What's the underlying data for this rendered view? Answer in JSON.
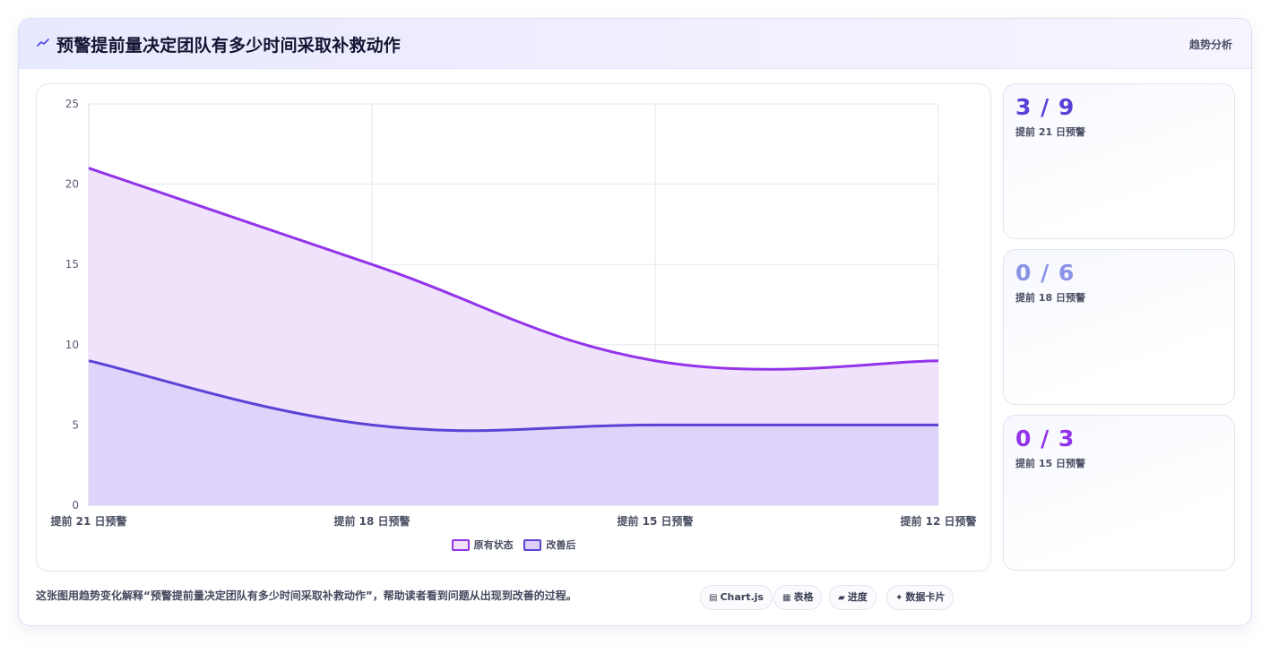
{
  "header": {
    "title": "预警提前量决定团队有多少时间采取补救动作",
    "tag": "趋势分析"
  },
  "chart_data": {
    "type": "area",
    "categories": [
      "提前 21 日预警",
      "提前 18 日预警",
      "提前 15 日预警",
      "提前 12 日预警"
    ],
    "series": [
      {
        "name": "原有状态",
        "values": [
          21,
          15,
          9,
          9
        ],
        "color": "#9333ea",
        "fill": "#efe2fa"
      },
      {
        "name": "改善后",
        "values": [
          9,
          5,
          5,
          5
        ],
        "color": "#5b43d6",
        "fill": "#ddd0f8"
      }
    ],
    "ylim": [
      0,
      25
    ],
    "yticks": [
      0,
      5,
      10,
      15,
      20,
      25
    ],
    "grid": true,
    "legend": "bottom"
  },
  "stats": [
    {
      "value": "3 / 9",
      "label": "提前 21 日预警",
      "color": "#5b3fd6"
    },
    {
      "value": "0 / 6",
      "label": "提前 18 日预警",
      "color": "#8b93e6"
    },
    {
      "value": "0 / 3",
      "label": "提前 15 日预警",
      "color": "#9333ea"
    }
  ],
  "caption": "这张图用趋势变化解释“预警提前量决定团队有多少时间采取补救动作”，帮助读者看到问题从出现到改善的过程。",
  "chips": [
    {
      "icon": "▤",
      "label": "Chart.js"
    },
    {
      "icon": "▦",
      "label": "表格"
    },
    {
      "icon": "▰",
      "label": "进度"
    },
    {
      "icon": "✦",
      "label": "数据卡片"
    }
  ]
}
